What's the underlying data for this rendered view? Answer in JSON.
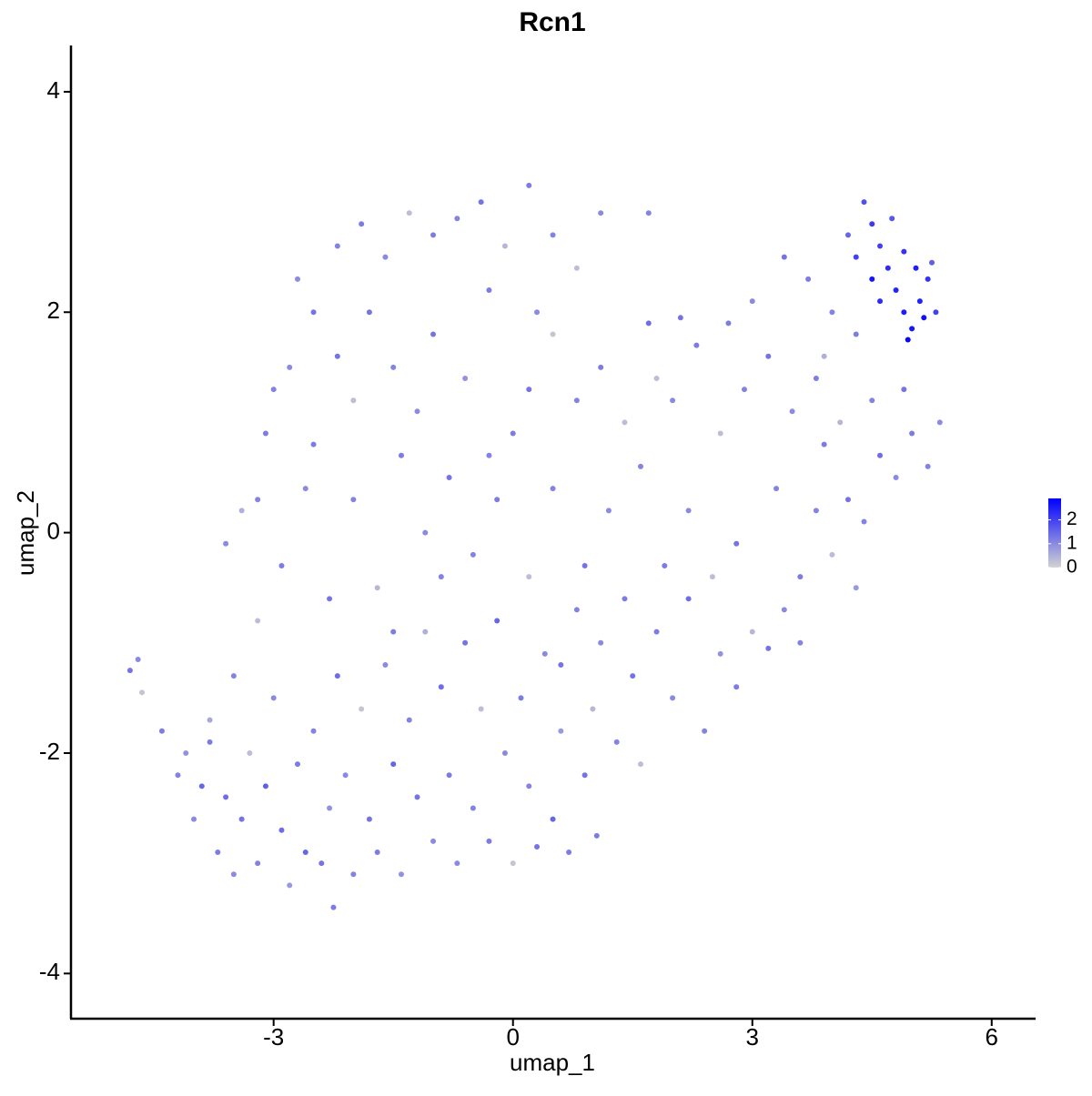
{
  "chart_data": {
    "type": "scatter",
    "title": "Rcn1",
    "x_label": "umap_1",
    "y_label": "umap_2",
    "x": [
      -4.8,
      -4.7,
      -4.65,
      -4.4,
      -4.2,
      -4.1,
      -4.0,
      -3.9,
      -3.8,
      -3.7,
      -3.6,
      -3.5,
      -3.4,
      -3.3,
      -3.2,
      -3.1,
      -3.0,
      -2.9,
      -2.8,
      -2.7,
      -2.6,
      -2.5,
      -2.4,
      -2.3,
      -2.25,
      -2.2,
      -2.1,
      -2.0,
      -1.9,
      -1.8,
      -1.7,
      -1.6,
      -1.5,
      -1.4,
      -1.3,
      -1.2,
      -1.1,
      -1.0,
      -0.9,
      -0.8,
      -0.7,
      -0.6,
      -0.5,
      -0.4,
      -0.3,
      -0.2,
      -0.1,
      0.0,
      0.1,
      0.2,
      0.3,
      0.4,
      0.5,
      0.6,
      0.7,
      0.8,
      0.9,
      1.0,
      1.05,
      1.1,
      1.3,
      1.5,
      1.6,
      1.8,
      2.0,
      2.2,
      2.4,
      2.6,
      2.8,
      3.0,
      3.2,
      3.4,
      3.6,
      3.8,
      4.0,
      4.2,
      4.4,
      4.6,
      4.8,
      5.0,
      5.2,
      5.35,
      4.9,
      4.5,
      4.1,
      3.8,
      3.5,
      3.2,
      2.9,
      2.6,
      2.3,
      2.0,
      1.7,
      1.4,
      1.1,
      0.8,
      0.5,
      0.2,
      1.6,
      2.2,
      2.8,
      3.3,
      3.9,
      4.3,
      1.9,
      1.2,
      0.9,
      0.5,
      0.2,
      -0.2,
      -0.5,
      -0.8,
      -1.1,
      -1.4,
      -1.7,
      -2.0,
      -2.3,
      -2.6,
      -2.9,
      -3.2,
      -3.5,
      -3.8,
      -3.4,
      -3.1,
      -2.8,
      -2.5,
      -2.2,
      -1.9,
      -1.6,
      -1.3,
      -1.0,
      -0.7,
      -0.4,
      -0.1,
      0.2,
      0.5,
      0.8,
      1.1,
      -0.3,
      0.3,
      -1.0,
      -1.5,
      -2.0,
      -2.5,
      -3.0,
      -2.7,
      -1.8,
      -0.6,
      0.0,
      -0.3,
      -1.2,
      -2.2,
      -3.2,
      -3.6,
      -1.5,
      -0.9,
      0.6,
      1.4,
      2.5,
      3.6,
      4.4,
      4.5,
      4.6,
      4.7,
      4.8,
      4.9,
      5.0,
      5.1,
      5.2,
      5.3,
      4.3,
      4.5,
      4.75,
      4.9,
      5.05,
      5.15,
      4.95,
      5.25,
      4.6,
      4.2,
      3.7,
      4.0,
      3.4,
      3.0,
      2.7,
      3.9,
      4.3,
      2.1,
      1.7,
      1.8
    ],
    "y": [
      -1.25,
      -1.15,
      -1.45,
      -1.8,
      -2.2,
      -2.0,
      -2.6,
      -2.3,
      -1.7,
      -2.9,
      -2.4,
      -3.1,
      -2.6,
      -2.0,
      -3.0,
      -2.3,
      -1.5,
      -2.7,
      -3.2,
      -2.1,
      -2.9,
      -1.8,
      -3.0,
      -2.5,
      -3.4,
      -1.3,
      -2.2,
      -3.1,
      -1.6,
      -2.6,
      -2.9,
      -1.2,
      -2.1,
      -3.1,
      -1.7,
      -2.4,
      -0.9,
      -2.8,
      -1.4,
      -2.2,
      -3.0,
      -1.0,
      -2.5,
      -1.6,
      -2.8,
      -0.8,
      -2.0,
      -3.0,
      -1.5,
      -2.3,
      -2.85,
      -1.1,
      -2.6,
      -1.8,
      -2.9,
      -0.7,
      -2.2,
      -1.6,
      -2.75,
      -1.0,
      -1.9,
      -1.3,
      -2.1,
      -0.9,
      -1.5,
      -0.6,
      -1.8,
      -1.1,
      -1.4,
      -0.9,
      -1.05,
      -0.7,
      -0.4,
      0.2,
      -0.2,
      0.3,
      0.1,
      0.7,
      0.5,
      0.9,
      0.6,
      1.0,
      1.3,
      1.2,
      1.0,
      1.4,
      1.1,
      1.6,
      1.3,
      0.9,
      1.7,
      1.2,
      1.9,
      1.0,
      1.5,
      1.2,
      1.8,
      1.3,
      0.6,
      0.2,
      -0.1,
      0.4,
      0.8,
      -0.5,
      -0.3,
      0.2,
      -0.3,
      0.4,
      -0.4,
      0.3,
      -0.2,
      0.5,
      0.0,
      0.7,
      -0.5,
      0.3,
      -0.6,
      0.4,
      -0.3,
      -0.8,
      -1.3,
      -1.9,
      0.2,
      0.9,
      1.5,
      2.0,
      2.6,
      2.8,
      2.5,
      2.9,
      2.7,
      2.85,
      3.0,
      2.6,
      3.15,
      2.7,
      2.4,
      2.9,
      2.2,
      2.0,
      1.8,
      1.5,
      1.2,
      0.8,
      1.3,
      2.3,
      2.0,
      1.4,
      0.9,
      0.7,
      1.1,
      1.6,
      0.3,
      -0.1,
      -0.9,
      -0.4,
      -1.2,
      -0.6,
      -0.4,
      -1.0,
      3.0,
      2.8,
      2.6,
      2.4,
      2.2,
      2.0,
      1.85,
      2.1,
      2.3,
      2.0,
      2.5,
      2.3,
      2.85,
      2.55,
      2.4,
      1.95,
      1.75,
      2.45,
      2.1,
      2.7,
      2.3,
      2.0,
      2.5,
      2.1,
      1.9,
      1.6,
      1.8,
      1.95,
      2.9,
      1.4
    ],
    "values": [
      1.3,
      1.0,
      0.2,
      1.2,
      1.1,
      0.9,
      1.0,
      1.5,
      0.6,
      1.2,
      1.4,
      1.0,
      1.3,
      0.3,
      1.1,
      1.6,
      1.0,
      1.4,
      0.8,
      1.2,
      1.5,
      1.1,
      1.3,
      0.9,
      1.2,
      1.4,
      1.0,
      1.1,
      0.2,
      1.3,
      1.2,
      1.0,
      1.5,
      0.9,
      1.1,
      1.3,
      0.5,
      1.0,
      1.4,
      1.2,
      1.0,
      1.3,
      1.1,
      0.3,
      1.2,
      1.5,
      1.0,
      0.2,
      1.2,
      1.1,
      1.3,
      1.0,
      1.5,
      0.8,
      1.2,
      1.1,
      1.3,
      0.4,
      1.2,
      1.0,
      1.1,
      1.3,
      0.3,
      1.2,
      1.0,
      1.4,
      1.1,
      0.9,
      1.2,
      0.4,
      1.3,
      1.0,
      1.2,
      1.1,
      0.3,
      1.3,
      1.1,
      1.4,
      1.0,
      1.2,
      1.1,
      1.0,
      1.3,
      1.1,
      0.4,
      1.2,
      1.0,
      1.3,
      1.1,
      0.3,
      1.2,
      1.0,
      1.4,
      0.3,
      1.2,
      1.1,
      0.2,
      1.3,
      1.1,
      1.0,
      1.3,
      1.1,
      1.2,
      0.8,
      1.2,
      1.0,
      1.3,
      1.1,
      0.3,
      1.2,
      1.1,
      1.3,
      1.0,
      1.2,
      0.4,
      1.1,
      1.3,
      1.0,
      1.2,
      0.3,
      1.1,
      1.2,
      0.5,
      1.2,
      1.0,
      1.3,
      1.1,
      1.2,
      1.0,
      0.3,
      1.2,
      1.1,
      1.3,
      0.4,
      1.2,
      1.1,
      0.3,
      1.0,
      1.2,
      1.0,
      1.3,
      1.1,
      0.3,
      1.2,
      1.1,
      1.0,
      1.3,
      0.9,
      1.2,
      1.1,
      1.0,
      1.3,
      1.1,
      1.0,
      1.2,
      1.1,
      1.3,
      1.2,
      0.3,
      1.1,
      1.8,
      2.1,
      2.0,
      2.3,
      2.4,
      2.5,
      2.6,
      2.4,
      2.2,
      2.0,
      2.0,
      2.6,
      1.7,
      2.2,
      2.5,
      2.7,
      2.8,
      1.6,
      2.3,
      1.5,
      1.2,
      1.1,
      1.3,
      1.0,
      1.2,
      0.5,
      1.2,
      1.3,
      1.1,
      0.3
    ],
    "xlim": [
      -5.54,
      6.55
    ],
    "ylim": [
      -4.41,
      4.42
    ],
    "xticks": [
      -3,
      0,
      3,
      6
    ],
    "yticks": [
      -4,
      -2,
      0,
      2,
      4
    ],
    "colorbar": {
      "lim": [
        0,
        2.9
      ],
      "ticks": [
        0,
        1,
        2
      ],
      "low_color": "#d3d3d3",
      "high_color": "#0000ff"
    }
  }
}
